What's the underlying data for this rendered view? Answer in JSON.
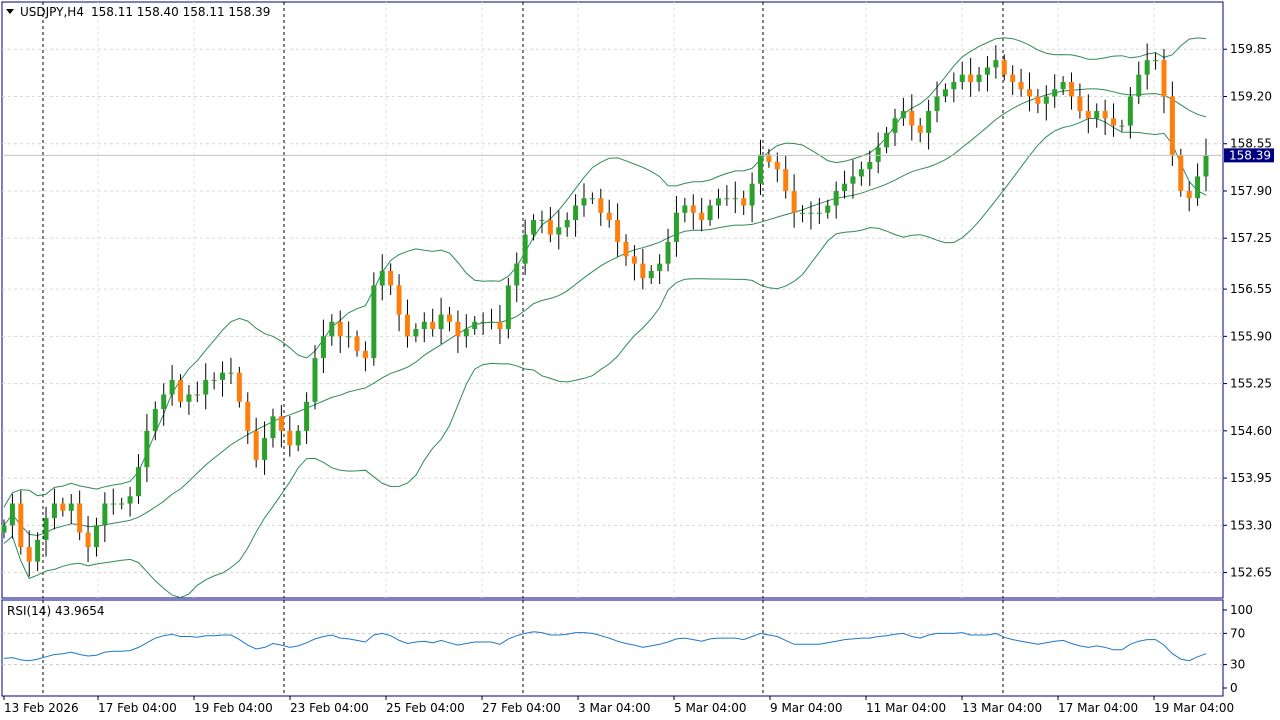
{
  "header": {
    "symbol": "USDJPY,H4",
    "ohlc": "158.11 158.40 158.11 158.39"
  },
  "current_price_label": "158.39",
  "rsi_label": "RSI(14) 43.9654",
  "colors": {
    "bull": "#2ca02c",
    "bear": "#ff7f0e",
    "bands": "#2e8b57",
    "rsi": "#1e78c8",
    "frame": "#000080",
    "price_tag": "#000080"
  },
  "chart_data": {
    "type": "candlestick",
    "price_axis": {
      "min": 152.3,
      "max": 160.5,
      "ticks": [
        "159.85",
        "159.20",
        "158.55",
        "157.90",
        "157.25",
        "156.55",
        "155.90",
        "155.25",
        "154.60",
        "153.95",
        "153.30",
        "152.65"
      ]
    },
    "rsi_axis": {
      "min": 0,
      "max": 100,
      "ticks": [
        "100",
        "70",
        "30",
        "0"
      ]
    },
    "x_labels": [
      "13 Feb 2026",
      "17 Feb 04:00",
      "19 Feb 04:00",
      "23 Feb 04:00",
      "25 Feb 04:00",
      "27 Feb 04:00",
      "3 Mar 04:00",
      "5 Mar 04:00",
      "9 Mar 04:00",
      "11 Mar 04:00",
      "13 Mar 04:00",
      "17 Mar 04:00",
      "19 Mar 04:00"
    ],
    "closes": [
      153.3,
      153.6,
      153.0,
      152.8,
      153.1,
      153.4,
      153.6,
      153.5,
      153.6,
      153.2,
      153.0,
      153.3,
      153.6,
      153.6,
      153.6,
      153.7,
      154.1,
      154.6,
      154.9,
      155.1,
      155.3,
      155.0,
      155.1,
      155.1,
      155.3,
      155.3,
      155.4,
      155.4,
      155.0,
      154.6,
      154.2,
      154.5,
      154.8,
      154.6,
      154.4,
      154.6,
      155.0,
      155.6,
      155.9,
      156.1,
      155.9,
      155.9,
      155.7,
      155.6,
      156.6,
      156.8,
      156.6,
      156.2,
      155.9,
      156.0,
      156.1,
      156.0,
      156.2,
      156.1,
      155.9,
      156.0,
      156.1,
      156.1,
      156.1,
      156.0,
      156.6,
      156.9,
      157.3,
      157.5,
      157.5,
      157.3,
      157.4,
      157.5,
      157.7,
      157.8,
      157.8,
      157.6,
      157.5,
      157.2,
      157.0,
      156.9,
      156.7,
      156.8,
      156.9,
      157.2,
      157.6,
      157.7,
      157.6,
      157.5,
      157.7,
      157.8,
      157.8,
      157.8,
      157.7,
      158.0,
      158.4,
      158.3,
      158.2,
      157.9,
      157.6,
      157.6,
      157.6,
      157.6,
      157.7,
      157.9,
      158.0,
      158.1,
      158.2,
      158.3,
      158.5,
      158.7,
      158.9,
      159.0,
      158.8,
      158.7,
      159.0,
      159.2,
      159.3,
      159.4,
      159.5,
      159.4,
      159.5,
      159.6,
      159.7,
      159.5,
      159.4,
      159.3,
      159.2,
      159.1,
      159.2,
      159.3,
      159.4,
      159.2,
      159.0,
      158.9,
      159.0,
      158.9,
      158.8,
      158.8,
      159.2,
      159.5,
      159.7,
      159.7,
      159.2,
      158.4,
      157.9,
      157.8,
      158.1,
      158.39
    ],
    "rsi_values": [
      38,
      39,
      36,
      35,
      37,
      40,
      43,
      44,
      46,
      43,
      41,
      42,
      46,
      47,
      47,
      48,
      52,
      58,
      64,
      67,
      69,
      66,
      66,
      65,
      67,
      67,
      68,
      68,
      62,
      55,
      50,
      52,
      57,
      55,
      52,
      54,
      58,
      63,
      66,
      68,
      64,
      63,
      61,
      59,
      68,
      70,
      67,
      61,
      57,
      59,
      60,
      58,
      61,
      58,
      55,
      57,
      59,
      59,
      59,
      56,
      63,
      67,
      70,
      72,
      71,
      68,
      68,
      69,
      71,
      71,
      70,
      67,
      64,
      60,
      57,
      55,
      52,
      54,
      56,
      59,
      63,
      64,
      62,
      60,
      63,
      64,
      64,
      64,
      62,
      66,
      70,
      68,
      66,
      61,
      56,
      56,
      56,
      56,
      58,
      60,
      62,
      63,
      64,
      64,
      66,
      67,
      69,
      70,
      66,
      64,
      68,
      70,
      70,
      70,
      71,
      68,
      68,
      68,
      70,
      65,
      62,
      60,
      58,
      56,
      58,
      60,
      61,
      57,
      54,
      52,
      54,
      52,
      49,
      49,
      56,
      60,
      62,
      62,
      55,
      44,
      37,
      35,
      40,
      43.97
    ]
  }
}
